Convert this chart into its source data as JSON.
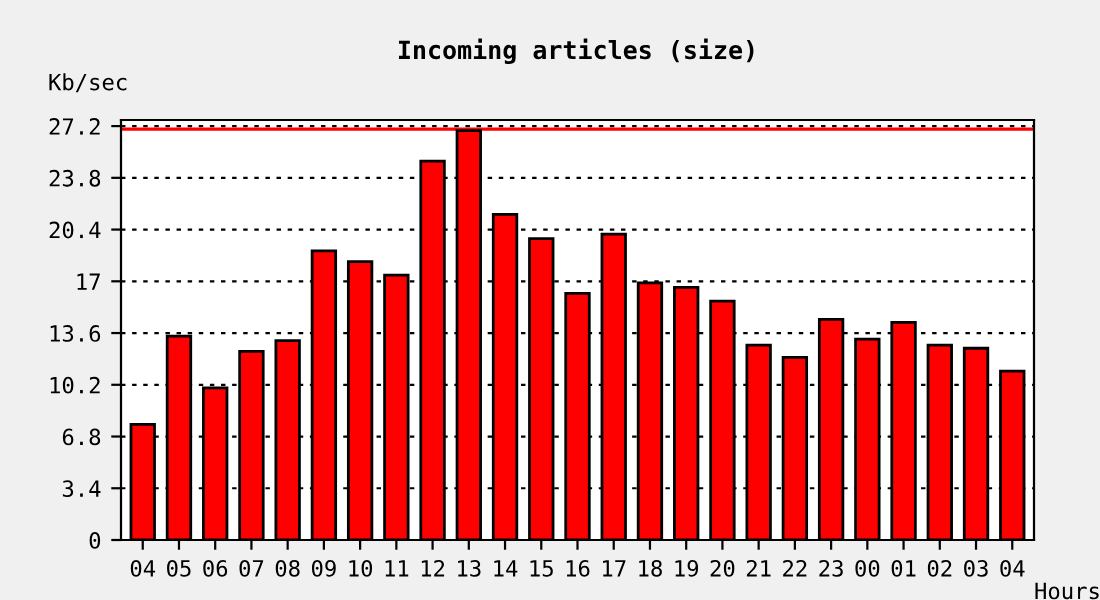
{
  "chart_data": {
    "type": "bar",
    "title": "Incoming articles (size)",
    "xlabel": "Hours",
    "ylabel": "Kb/sec",
    "categories": [
      "04",
      "05",
      "06",
      "07",
      "08",
      "09",
      "10",
      "11",
      "12",
      "13",
      "14",
      "15",
      "16",
      "17",
      "18",
      "19",
      "20",
      "21",
      "22",
      "23",
      "00",
      "01",
      "02",
      "03",
      "04"
    ],
    "values": [
      7.6,
      13.4,
      10.0,
      12.4,
      13.1,
      19.0,
      18.3,
      17.4,
      24.9,
      26.9,
      21.4,
      19.8,
      16.2,
      20.1,
      16.9,
      16.6,
      15.7,
      12.8,
      12.0,
      14.5,
      13.2,
      14.3,
      12.8,
      12.6,
      11.1
    ],
    "color": "#ff0000",
    "ylim": [
      0,
      27.6
    ],
    "yticks": [
      0,
      3.4,
      6.8,
      10.2,
      13.6,
      17,
      20.4,
      23.8,
      27.2
    ],
    "grid": "y",
    "ref_lines": [
      {
        "axis": "y",
        "value": 27.0,
        "color": "#ff0000"
      }
    ]
  }
}
